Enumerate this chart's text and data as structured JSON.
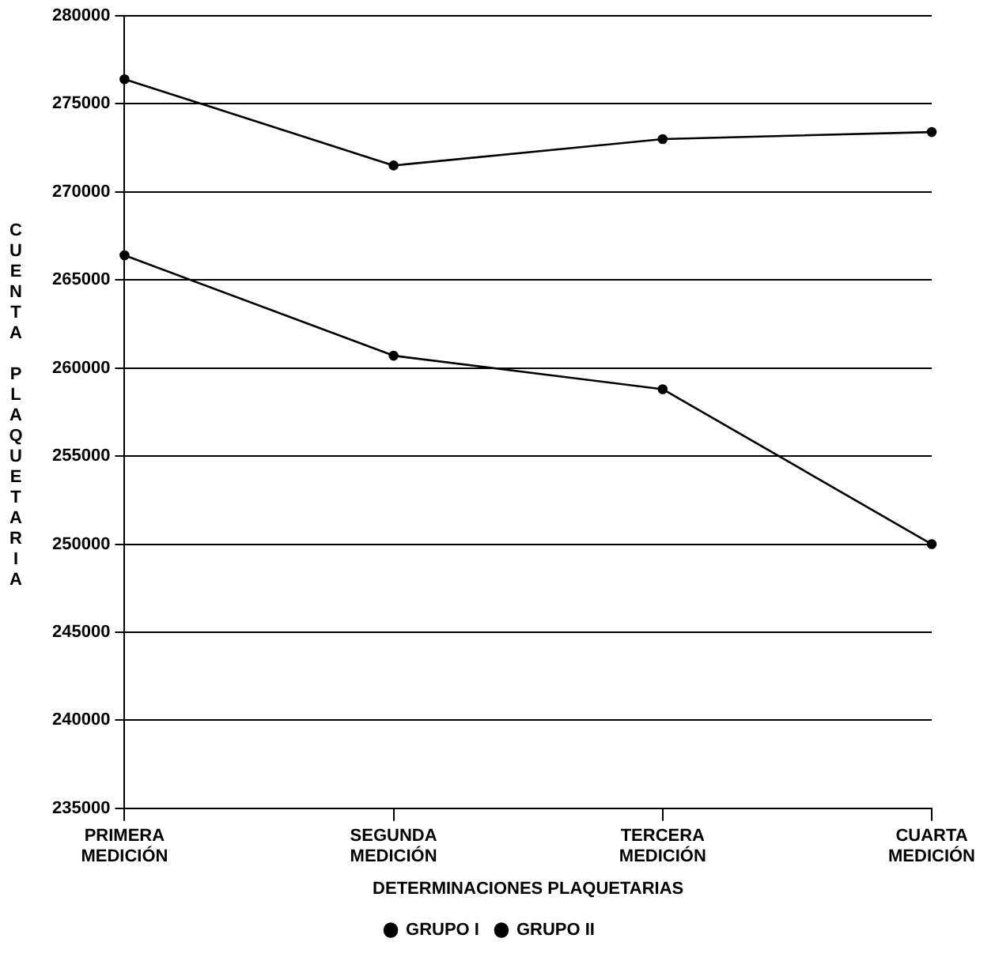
{
  "chart_data": {
    "type": "line",
    "xlabel": "DETERMINACIONES PLAQUETARIAS",
    "ylabel": "CUENTA PLAQUETARIA",
    "categories": [
      "PRIMERA MEDICIÓN",
      "SEGUNDA MEDICIÓN",
      "TERCERA MEDICIÓN",
      "CUARTA MEDICIÓN"
    ],
    "series": [
      {
        "name": "GRUPO I",
        "color": "#000000",
        "values": [
          276400,
          271500,
          273000,
          273400
        ]
      },
      {
        "name": "GRUPO II",
        "color": "#000000",
        "values": [
          266400,
          260700,
          258800,
          250000
        ]
      }
    ],
    "ylim": [
      235000,
      280000
    ],
    "yticks": [
      235000,
      240000,
      245000,
      250000,
      255000,
      260000,
      265000,
      270000,
      275000,
      280000
    ],
    "grid": "y",
    "legend": "bottom",
    "marker": "circle",
    "line_style": "solid"
  }
}
